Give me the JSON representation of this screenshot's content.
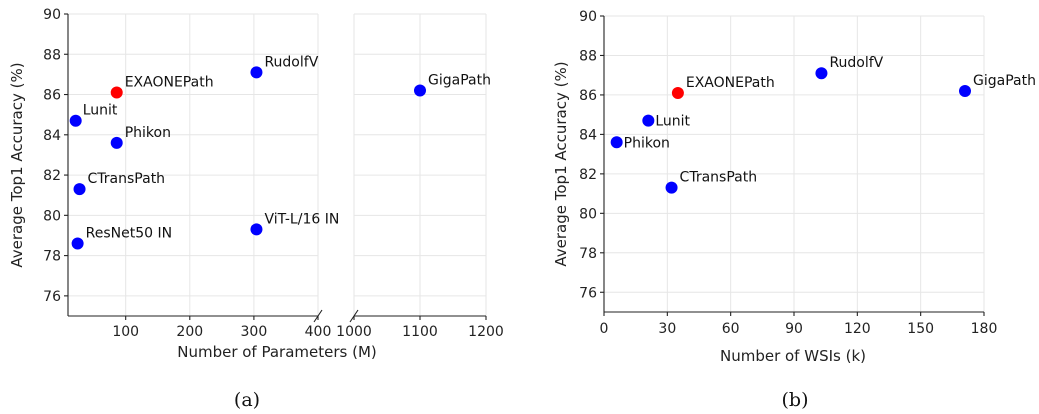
{
  "chart_data": [
    {
      "id": "a",
      "type": "scatter",
      "caption": "(a)",
      "xlabel": "Number of Parameters (M)",
      "ylabel": "Average Top1 Accuracy (%)",
      "broken_x_axis": true,
      "segments": [
        {
          "xlim": [
            10,
            400
          ],
          "xticks": [
            100,
            200,
            300,
            400
          ]
        },
        {
          "xlim": [
            1000,
            1200
          ],
          "xticks": [
            1000,
            1100,
            1200
          ]
        }
      ],
      "ylim": [
        75,
        90
      ],
      "yticks": [
        76,
        78,
        80,
        82,
        84,
        86,
        88,
        90
      ],
      "grid": true,
      "points": [
        {
          "label": "EXAONEPath",
          "x": 86,
          "y": 86.1,
          "color": "#ff0000"
        },
        {
          "label": "RudolfV",
          "x": 304,
          "y": 87.1,
          "color": "#0000ff"
        },
        {
          "label": "GigaPath",
          "x": 1100,
          "y": 86.2,
          "color": "#0000ff"
        },
        {
          "label": "Lunit",
          "x": 22,
          "y": 84.7,
          "color": "#0000ff"
        },
        {
          "label": "Phikon",
          "x": 86,
          "y": 83.6,
          "color": "#0000ff"
        },
        {
          "label": "CTransPath",
          "x": 28,
          "y": 81.3,
          "color": "#0000ff"
        },
        {
          "label": "ViT-L/16 IN",
          "x": 304,
          "y": 79.3,
          "color": "#0000ff"
        },
        {
          "label": "ResNet50 IN",
          "x": 25,
          "y": 78.6,
          "color": "#0000ff"
        }
      ]
    },
    {
      "id": "b",
      "type": "scatter",
      "caption": "(b)",
      "xlabel": "Number of WSIs (k)",
      "ylabel": "Average Top1 Accuracy (%)",
      "xlim": [
        0,
        180
      ],
      "xticks": [
        0,
        30,
        60,
        90,
        120,
        150,
        180
      ],
      "ylim": [
        75,
        90
      ],
      "yticks": [
        76,
        78,
        80,
        82,
        84,
        86,
        88,
        90
      ],
      "grid": true,
      "points": [
        {
          "label": "EXAONEPath",
          "x": 35,
          "y": 86.1,
          "color": "#ff0000"
        },
        {
          "label": "RudolfV",
          "x": 103,
          "y": 87.1,
          "color": "#0000ff"
        },
        {
          "label": "GigaPath",
          "x": 171,
          "y": 86.2,
          "color": "#0000ff"
        },
        {
          "label": "Lunit",
          "x": 21,
          "y": 84.7,
          "color": "#0000ff"
        },
        {
          "label": "Phikon",
          "x": 6,
          "y": 83.6,
          "color": "#0000ff"
        },
        {
          "label": "CTransPath",
          "x": 32,
          "y": 81.3,
          "color": "#0000ff"
        }
      ]
    }
  ]
}
